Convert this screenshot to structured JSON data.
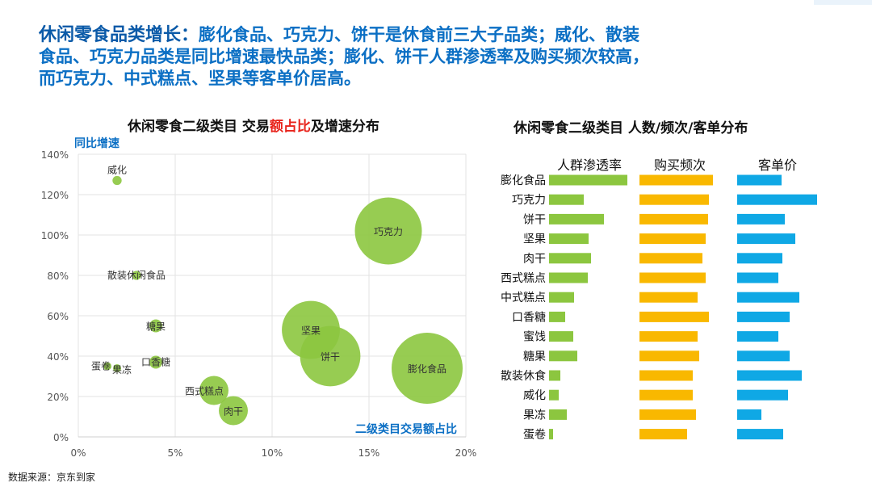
{
  "headline": {
    "lead": "休闲零食品类增长：",
    "body": "膨化食品、巧克力、饼干是休食前三大子品类；威化、散装食品、巧克力品类是同比增速最快品类；膨化、饼干人群渗透率及购买频次较高，而巧克力、中式糕点、坚果等客单价居高。"
  },
  "source": "数据来源：京东到家",
  "colors": {
    "bubble": "#8cc63f",
    "bar_green": "#8cc63f",
    "bar_orange": "#f9b800",
    "bar_blue": "#0fa8e5",
    "highlight": "#e8231b",
    "axis_label_blue": "#0b6fc4"
  },
  "chart_data": [
    {
      "type": "scatter",
      "title_pre": "休闲零食二级类目 交易",
      "title_hl": "额占比",
      "title_post": "及增速分布",
      "ylabel": "同比增速",
      "xlabel": "二级类目交易额占比",
      "xlim": [
        0,
        0.2
      ],
      "ylim": [
        0,
        1.4
      ],
      "x_ticks": [
        0,
        0.05,
        0.1,
        0.15,
        0.2
      ],
      "x_tick_labels": [
        "0%",
        "5%",
        "10%",
        "15%",
        "20%"
      ],
      "y_ticks": [
        0,
        0.2,
        0.4,
        0.6,
        0.8,
        1.0,
        1.2,
        1.4
      ],
      "y_tick_labels": [
        "0%",
        "20%",
        "40%",
        "60%",
        "80%",
        "100%",
        "120%",
        "140%"
      ],
      "grid": true,
      "points": [
        {
          "name": "威化",
          "x": 0.02,
          "y": 1.27,
          "size": 0.003
        },
        {
          "name": "巧克力",
          "x": 0.16,
          "y": 1.02,
          "size": 0.16
        },
        {
          "name": "散装休闲食品",
          "x": 0.03,
          "y": 0.8,
          "size": 0.003
        },
        {
          "name": "糖果",
          "x": 0.04,
          "y": 0.55,
          "size": 0.006
        },
        {
          "name": "坚果",
          "x": 0.12,
          "y": 0.53,
          "size": 0.12
        },
        {
          "name": "饼干",
          "x": 0.13,
          "y": 0.4,
          "size": 0.13
        },
        {
          "name": "口香糖",
          "x": 0.04,
          "y": 0.37,
          "size": 0.006
        },
        {
          "name": "膨化食品",
          "x": 0.18,
          "y": 0.34,
          "size": 0.18
        },
        {
          "name": "蛋卷",
          "x": 0.015,
          "y": 0.35,
          "size": 0.001
        },
        {
          "name": "果冻",
          "x": 0.02,
          "y": 0.34,
          "size": 0.002
        },
        {
          "name": "西式糕点",
          "x": 0.07,
          "y": 0.23,
          "size": 0.03
        },
        {
          "name": "肉干",
          "x": 0.08,
          "y": 0.13,
          "size": 0.03
        }
      ]
    },
    {
      "type": "bar",
      "title": "休闲零食二级类目 人数/频次/客单分布",
      "categories": [
        "膨化食品",
        "巧克力",
        "饼干",
        "坚果",
        "肉干",
        "西式糕点",
        "中式糕点",
        "口香糖",
        "蜜饯",
        "糖果",
        "散装休食",
        "威化",
        "果冻",
        "蛋卷"
      ],
      "series": [
        {
          "name": "人群渗透率",
          "values": [
            0.97,
            0.43,
            0.68,
            0.49,
            0.52,
            0.48,
            0.31,
            0.2,
            0.3,
            0.35,
            0.14,
            0.12,
            0.22,
            0.05
          ]
        },
        {
          "name": "购买频次",
          "values": [
            0.91,
            0.86,
            0.85,
            0.82,
            0.78,
            0.82,
            0.72,
            0.86,
            0.72,
            0.74,
            0.66,
            0.66,
            0.7,
            0.59
          ]
        },
        {
          "name": "客单价",
          "values": [
            0.55,
            0.99,
            0.59,
            0.72,
            0.56,
            0.51,
            0.77,
            0.65,
            0.51,
            0.65,
            0.8,
            0.63,
            0.3,
            0.57
          ]
        }
      ],
      "grid": false
    }
  ]
}
